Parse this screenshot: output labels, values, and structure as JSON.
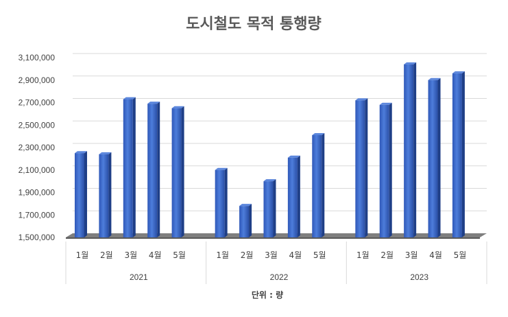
{
  "chart_data": {
    "type": "bar",
    "title": "도시철도 목적 통행량",
    "unit_label": "단위 : 량",
    "ylim": [
      1500000,
      3100000
    ],
    "y_ticks": [
      "1,500,000",
      "1,700,000",
      "1,900,000",
      "2,100,000",
      "2,300,000",
      "2,500,000",
      "2,700,000",
      "2,900,000",
      "3,100,000"
    ],
    "y_tick_values": [
      1500000,
      1700000,
      1900000,
      2100000,
      2300000,
      2500000,
      2700000,
      2900000,
      3100000
    ],
    "grid": true,
    "legend": "none",
    "bar_color": "#4472c4",
    "groups": [
      {
        "year": "2021",
        "categories": [
          "1월",
          "2월",
          "3월",
          "4월",
          "5월"
        ],
        "values": [
          2250000,
          2240000,
          2730000,
          2690000,
          2650000
        ]
      },
      {
        "year": "2022",
        "categories": [
          "1월",
          "2월",
          "3월",
          "4월",
          "5월"
        ],
        "values": [
          2100000,
          1780000,
          2000000,
          2210000,
          2410000
        ]
      },
      {
        "year": "2023",
        "categories": [
          "1월",
          "2월",
          "3월",
          "4월",
          "5월"
        ],
        "values": [
          2720000,
          2680000,
          3040000,
          2900000,
          2960000
        ]
      }
    ]
  }
}
